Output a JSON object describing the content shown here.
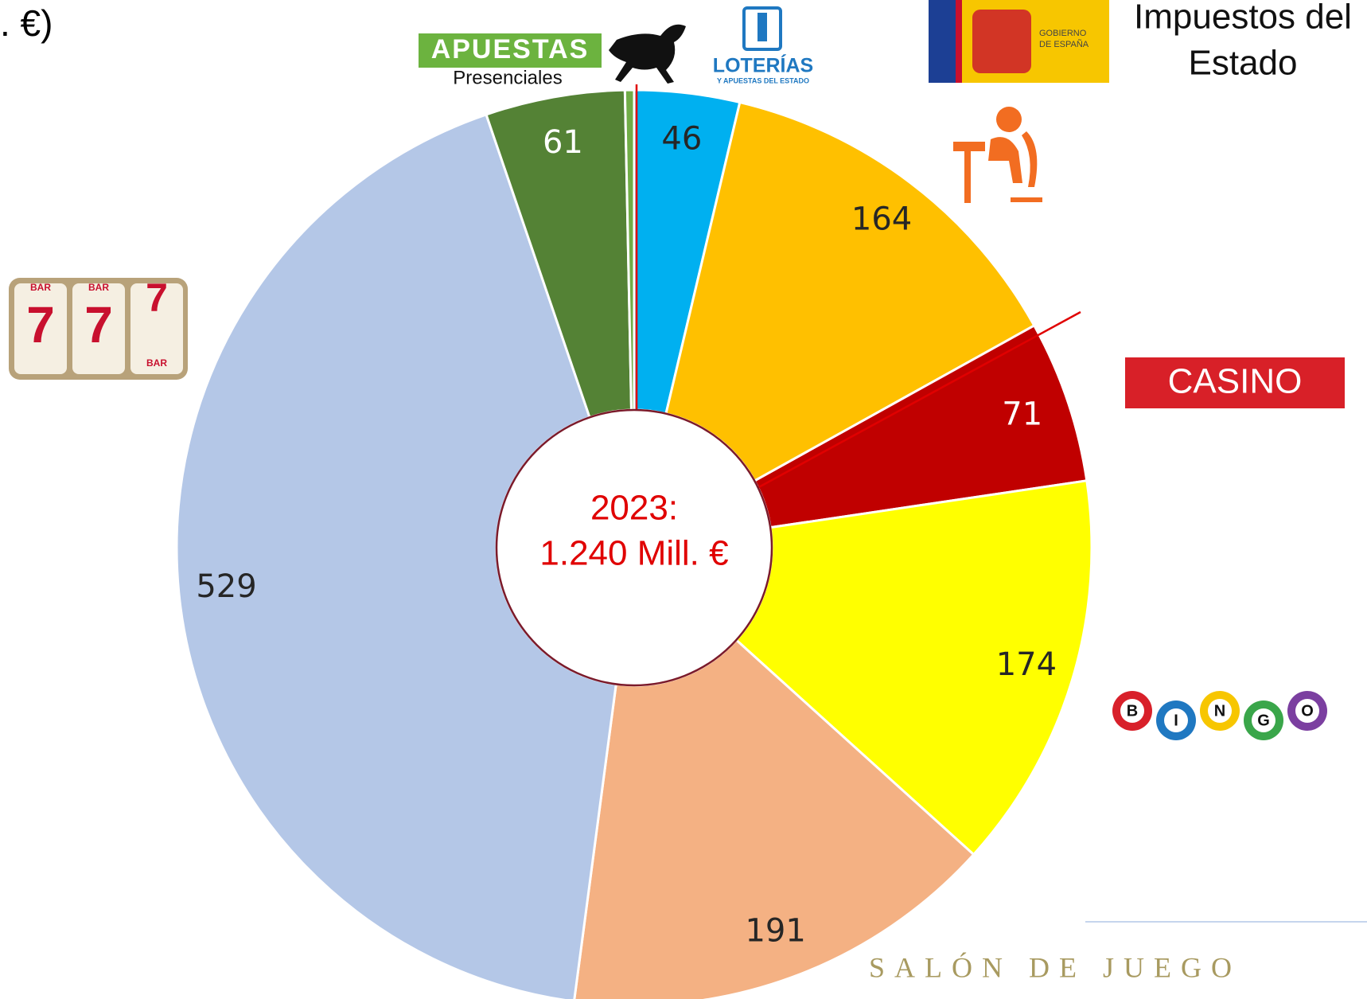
{
  "chart_data": {
    "type": "donut",
    "title": ". €)",
    "center_text": [
      "2023:",
      "1.240 Mill. €"
    ],
    "values": [
      46,
      164,
      71,
      174,
      191,
      529,
      61,
      4
    ],
    "colors": [
      "#00b0f0",
      "#ffc000",
      "#c00000",
      "#ffff00",
      "#f4b183",
      "#b4c7e7",
      "#548235",
      "#70ad47"
    ],
    "value_label_visible": [
      true,
      true,
      true,
      true,
      true,
      true,
      true,
      false
    ]
  },
  "logos": {
    "apuestas": "APUESTAS",
    "presenciales": "Presenciales",
    "loterias": "LOTERÍAS",
    "loterias_sub": "Y APUESTAS DEL ESTADO",
    "gobierno": [
      "GOBIERNO",
      "DE ESPAÑA"
    ],
    "impuestos": [
      "Impuestos del",
      "Estado"
    ],
    "casino": "CASINO",
    "bingo": [
      "B",
      "I",
      "N",
      "G",
      "O"
    ],
    "salon": "SALÓN DE JUEGO",
    "slot": [
      "BAR",
      "BAR",
      "BAR"
    ]
  }
}
